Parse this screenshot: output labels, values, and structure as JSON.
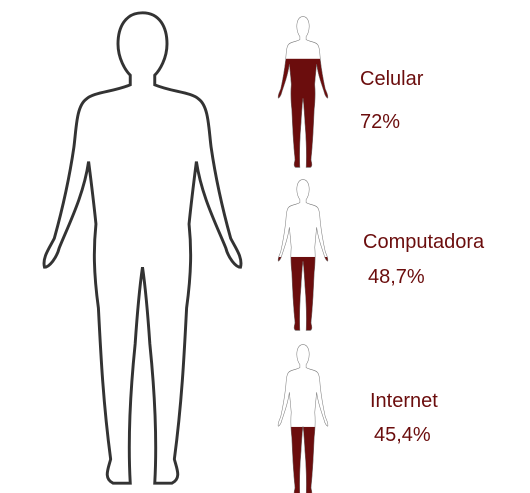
{
  "chart_data": {
    "type": "pictogram",
    "categories": [
      "Celular",
      "Computadora",
      "Internet"
    ],
    "values": [
      72,
      48.7,
      45.4
    ],
    "value_labels": [
      "72%",
      "48,7%",
      "45,4%"
    ],
    "color": "#6b0d0d"
  }
}
